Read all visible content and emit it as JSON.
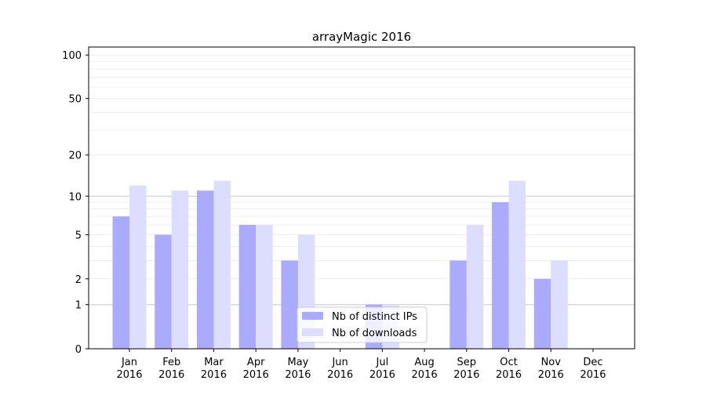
{
  "chart_data": {
    "type": "bar",
    "title": "arrayMagic 2016",
    "xlabel": "",
    "ylabel": "",
    "yscale": "symlog (log10(1+y))",
    "ylim": [
      0,
      110
    ],
    "yticks": [
      0,
      1,
      2,
      5,
      10,
      20,
      50,
      100
    ],
    "grid": true,
    "legend_position": "bottom-center",
    "categories": [
      "Jan\n2016",
      "Feb\n2016",
      "Mar\n2016",
      "Apr\n2016",
      "May\n2016",
      "Jun\n2016",
      "Jul\n2016",
      "Aug\n2016",
      "Sep\n2016",
      "Oct\n2016",
      "Nov\n2016",
      "Dec\n2016"
    ],
    "series": [
      {
        "name": "Nb of distinct IPs",
        "color": "#aaaaff",
        "values": [
          7,
          5,
          11,
          6,
          3,
          0,
          1,
          0,
          3,
          9,
          2,
          0
        ]
      },
      {
        "name": "Nb of downloads",
        "color": "#ddddff",
        "values": [
          12,
          11,
          13,
          6,
          5,
          0,
          1,
          0,
          6,
          13,
          3,
          0
        ]
      }
    ]
  }
}
